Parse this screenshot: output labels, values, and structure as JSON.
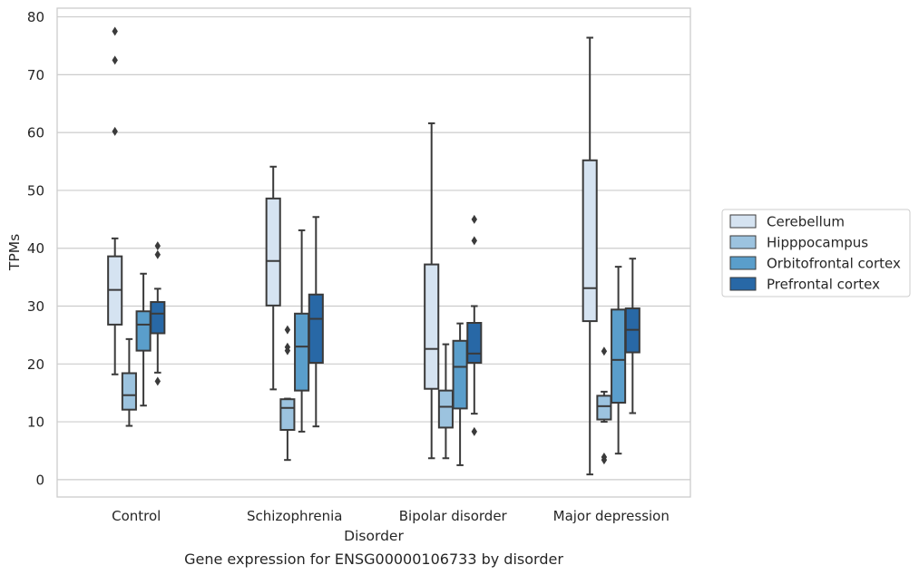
{
  "chart_data": {
    "type": "box",
    "title": "Gene expression for ENSG00000106733 by disorder",
    "xlabel": "Disorder",
    "ylabel": "TPMs",
    "ylim": [
      -3,
      81.5
    ],
    "yticks": [
      0,
      10,
      20,
      30,
      40,
      50,
      60,
      70,
      80
    ],
    "grid": "horizontal",
    "legend_placement": "right",
    "categories": [
      "Control",
      "Schizophrenia",
      "Bipolar disorder",
      "Major depression"
    ],
    "series": [
      {
        "name": "Cerebellum",
        "color": "#d5e3f1",
        "boxes": [
          {
            "whislo": 18.2,
            "q1": 26.8,
            "med": 32.8,
            "q3": 38.6,
            "whishi": 41.7,
            "fliers": [
              60.2,
              72.5,
              77.5
            ]
          },
          {
            "whislo": 15.6,
            "q1": 30.1,
            "med": 37.8,
            "q3": 48.6,
            "whishi": 54.1,
            "fliers": []
          },
          {
            "whislo": 3.7,
            "q1": 15.7,
            "med": 22.6,
            "q3": 37.2,
            "whishi": 61.6,
            "fliers": []
          },
          {
            "whislo": 0.9,
            "q1": 27.4,
            "med": 33.1,
            "q3": 55.2,
            "whishi": 76.4,
            "fliers": []
          }
        ]
      },
      {
        "name": "Hipppocampus",
        "color": "#9cc3df",
        "boxes": [
          {
            "whislo": 9.3,
            "q1": 12.1,
            "med": 14.6,
            "q3": 18.4,
            "whishi": 24.3,
            "fliers": []
          },
          {
            "whislo": 3.4,
            "q1": 8.6,
            "med": 12.4,
            "q3": 13.9,
            "whishi": 14.0,
            "fliers": [
              22.3,
              22.9,
              25.9
            ]
          },
          {
            "whislo": 3.7,
            "q1": 9.0,
            "med": 12.6,
            "q3": 15.4,
            "whishi": 23.4,
            "fliers": []
          },
          {
            "whislo": 10.0,
            "q1": 10.4,
            "med": 12.7,
            "q3": 14.5,
            "whishi": 15.2,
            "fliers": [
              3.4,
              3.9,
              22.2
            ]
          }
        ]
      },
      {
        "name": "Orbitofrontal cortex",
        "color": "#5a9ecb",
        "boxes": [
          {
            "whislo": 12.8,
            "q1": 22.3,
            "med": 26.8,
            "q3": 29.1,
            "whishi": 35.6,
            "fliers": []
          },
          {
            "whislo": 8.3,
            "q1": 15.4,
            "med": 23.0,
            "q3": 28.7,
            "whishi": 43.1,
            "fliers": []
          },
          {
            "whislo": 2.5,
            "q1": 12.3,
            "med": 19.5,
            "q3": 24.0,
            "whishi": 27.0,
            "fliers": []
          },
          {
            "whislo": 4.5,
            "q1": 13.3,
            "med": 20.7,
            "q3": 29.4,
            "whishi": 36.8,
            "fliers": []
          }
        ]
      },
      {
        "name": "Prefrontal cortex",
        "color": "#2868a6",
        "boxes": [
          {
            "whislo": 18.5,
            "q1": 25.3,
            "med": 28.7,
            "q3": 30.7,
            "whishi": 33.0,
            "fliers": [
              17.0,
              38.9,
              40.4
            ]
          },
          {
            "whislo": 9.2,
            "q1": 20.2,
            "med": 27.8,
            "q3": 32.0,
            "whishi": 45.4,
            "fliers": []
          },
          {
            "whislo": 11.4,
            "q1": 20.2,
            "med": 21.8,
            "q3": 27.1,
            "whishi": 30.0,
            "fliers": [
              8.3,
              41.3,
              45.0
            ]
          },
          {
            "whislo": 11.5,
            "q1": 22.0,
            "med": 25.9,
            "q3": 29.6,
            "whishi": 38.2,
            "fliers": []
          }
        ]
      }
    ]
  }
}
